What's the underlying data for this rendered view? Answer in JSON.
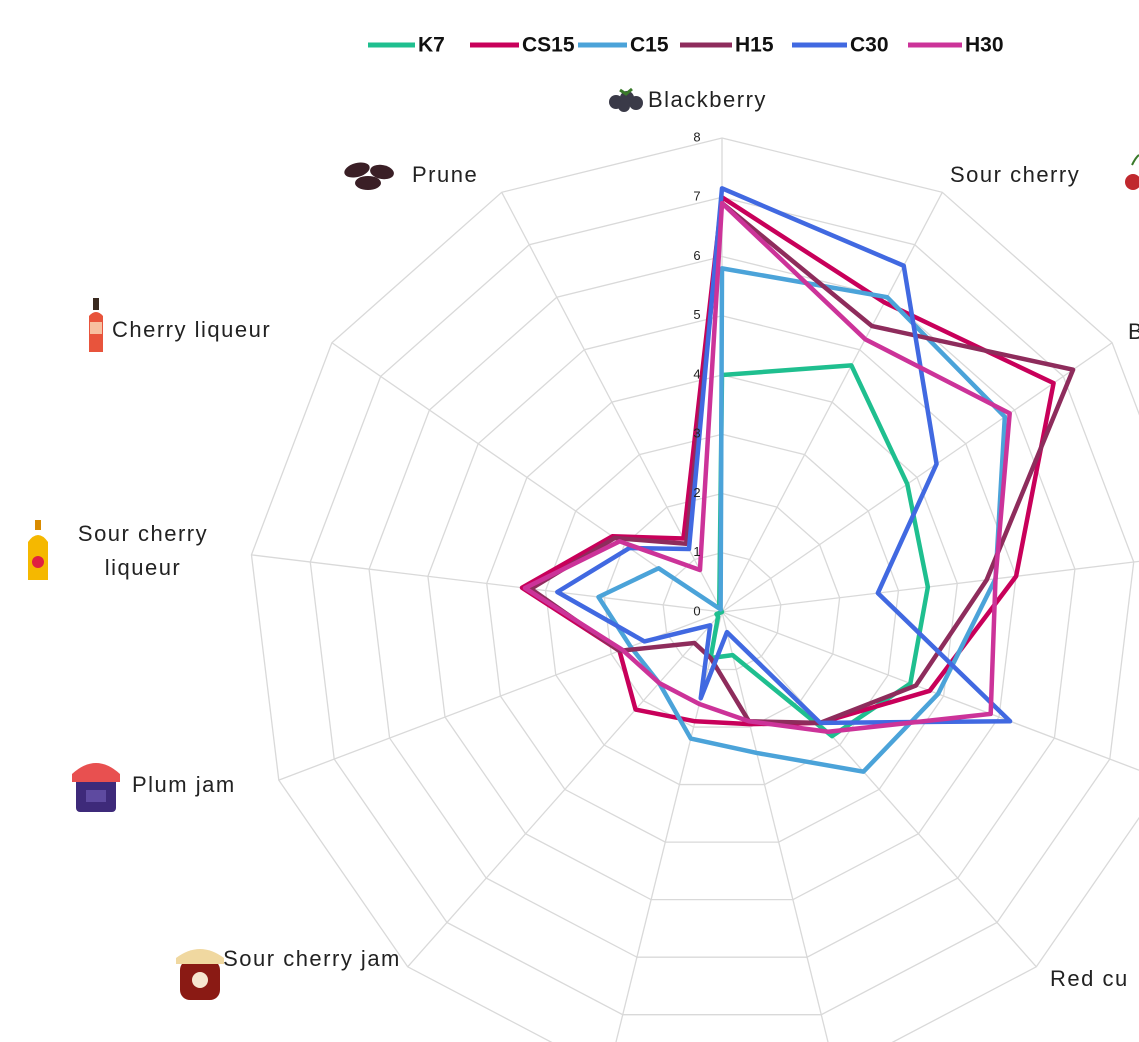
{
  "chart_data": {
    "type": "radar",
    "categories": [
      "Blackberry",
      "Sour cherry",
      "B",
      null,
      null,
      "Red cu",
      null,
      null,
      "Sour cherry jam",
      "Plum jam",
      "Sour cherry liqueur",
      "Cherry liqueur",
      "Prune"
    ],
    "ylim": [
      0,
      8
    ],
    "yticks": [
      0,
      1,
      2,
      3,
      4,
      5,
      6,
      7,
      8
    ],
    "grid": true,
    "legend": "top",
    "series": [
      {
        "name": "K7",
        "color": "#1fbf8f",
        "values": [
          4.0,
          4.7,
          3.8,
          3.5,
          3.4,
          2.8,
          0.75,
          0.8,
          0.1,
          0.1,
          0,
          0,
          0.1
        ]
      },
      {
        "name": "CS15",
        "color": "#c8005a",
        "values": [
          7.0,
          5.9,
          6.8,
          5.0,
          3.75,
          2.5,
          1.95,
          1.9,
          2.2,
          1.85,
          3.4,
          2.25,
          1.4
        ]
      },
      {
        "name": "C15",
        "color": "#4ba3d9",
        "values": [
          5.8,
          6.0,
          5.8,
          4.65,
          3.9,
          3.6,
          2.45,
          2.2,
          1.6,
          1.65,
          2.1,
          1.3,
          0.05
        ]
      },
      {
        "name": "H15",
        "color": "#8e2c5c",
        "values": [
          6.9,
          5.45,
          7.2,
          4.5,
          3.5,
          2.5,
          1.9,
          0.8,
          0.7,
          1.85,
          3.25,
          2.2,
          1.3
        ]
      },
      {
        "name": "C30",
        "color": "#4169e1",
        "values": [
          7.15,
          6.6,
          4.4,
          2.65,
          5.2,
          2.5,
          0.35,
          1.5,
          0.3,
          1.4,
          2.8,
          1.9,
          1.2
        ]
      },
      {
        "name": "H30",
        "color": "#cc3399",
        "values": [
          6.9,
          5.2,
          5.9,
          4.65,
          4.85,
          2.7,
          1.9,
          1.6,
          1.6,
          1.8,
          3.35,
          2.1,
          0.8
        ]
      }
    ]
  }
}
